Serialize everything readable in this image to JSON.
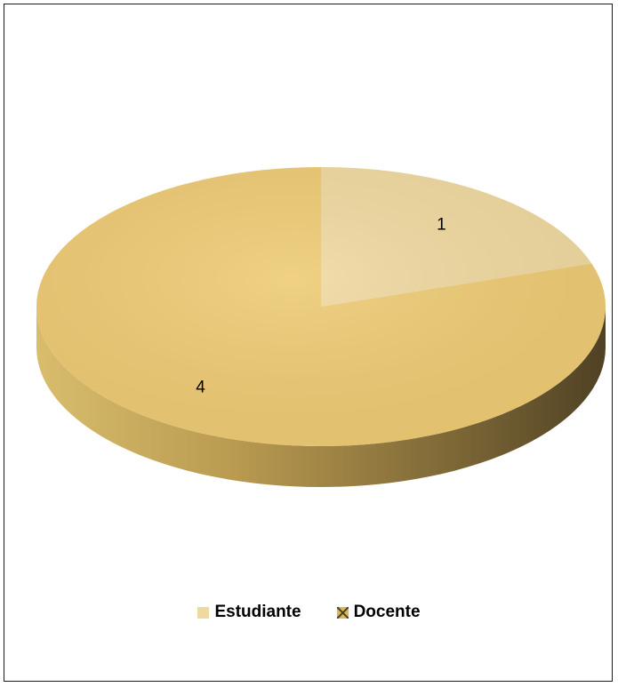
{
  "chart_data": {
    "type": "pie",
    "categories": [
      "Estudiante",
      "Docente"
    ],
    "values": [
      1,
      4
    ],
    "data_labels": [
      "1",
      "4"
    ],
    "colors": [
      "#f0d9a0",
      "#eecb74"
    ],
    "legend_position": "bottom"
  },
  "legend": {
    "items": [
      {
        "label": "Estudiante",
        "color": "#f0d9a0"
      },
      {
        "label": "Docente",
        "color": "#eecb74"
      }
    ]
  }
}
